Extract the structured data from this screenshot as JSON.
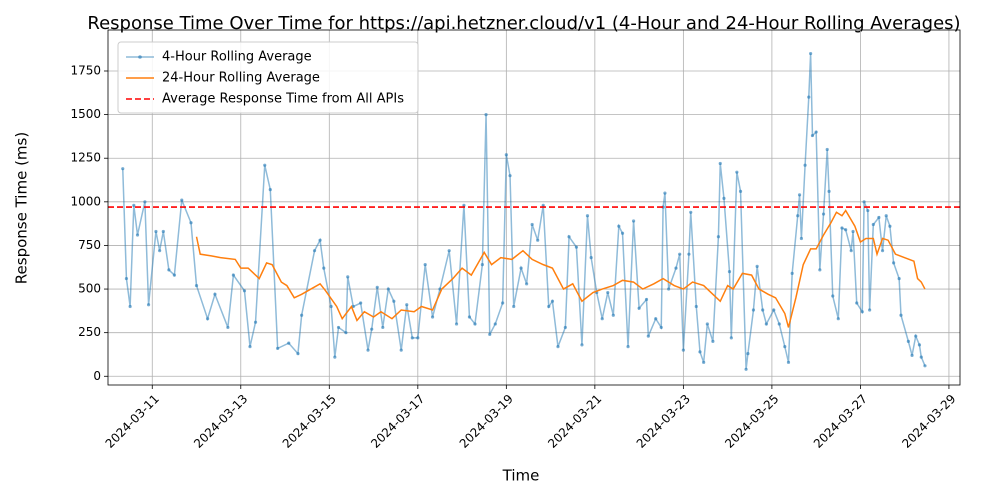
{
  "chart_data": {
    "type": "line",
    "title": "Response Time Over Time for https://api.hetzner.cloud/v1 (4-Hour and 24-Hour Rolling Averages)",
    "xlabel": "Time",
    "ylabel": "Response Time (ms)",
    "xlim": [
      "2024-03-10T00:00",
      "2024-03-29T06:00"
    ],
    "xticks": [
      "2024-03-11",
      "2024-03-13",
      "2024-03-15",
      "2024-03-17",
      "2024-03-19",
      "2024-03-21",
      "2024-03-23",
      "2024-03-25",
      "2024-03-27",
      "2024-03-29"
    ],
    "ylim": [
      -50,
      1985
    ],
    "yticks": [
      0,
      250,
      500,
      750,
      1000,
      1250,
      1500,
      1750
    ],
    "grid": true,
    "legend": "upper left",
    "series": [
      {
        "name": "4-Hour Rolling Average",
        "color": "#1f77b4",
        "markers": true,
        "x": [
          "2024-03-10T08:00",
          "2024-03-10T10:00",
          "2024-03-10T12:00",
          "2024-03-10T14:00",
          "2024-03-10T16:00",
          "2024-03-10T20:00",
          "2024-03-10T22:00",
          "2024-03-11T02:00",
          "2024-03-11T04:00",
          "2024-03-11T06:00",
          "2024-03-11T09:00",
          "2024-03-11T12:00",
          "2024-03-11T16:00",
          "2024-03-11T21:00",
          "2024-03-12T00:00",
          "2024-03-12T06:00",
          "2024-03-12T10:00",
          "2024-03-12T17:00",
          "2024-03-12T20:00",
          "2024-03-13T02:00",
          "2024-03-13T05:00",
          "2024-03-13T08:00",
          "2024-03-13T13:00",
          "2024-03-13T16:00",
          "2024-03-13T20:00",
          "2024-03-14T02:00",
          "2024-03-14T07:00",
          "2024-03-14T09:00",
          "2024-03-14T16:00",
          "2024-03-14T19:00",
          "2024-03-14T21:00",
          "2024-03-15T01:00",
          "2024-03-15T03:00",
          "2024-03-15T05:00",
          "2024-03-15T09:00",
          "2024-03-15T10:00",
          "2024-03-15T13:00",
          "2024-03-15T17:00",
          "2024-03-15T21:00",
          "2024-03-15T23:00",
          "2024-03-16T02:00",
          "2024-03-16T05:00",
          "2024-03-16T08:00",
          "2024-03-16T11:00",
          "2024-03-16T15:00",
          "2024-03-16T18:00",
          "2024-03-16T21:00",
          "2024-03-17T00:00",
          "2024-03-17T04:00",
          "2024-03-17T08:00",
          "2024-03-17T12:00",
          "2024-03-17T17:00",
          "2024-03-17T21:00",
          "2024-03-18T01:00",
          "2024-03-18T04:00",
          "2024-03-18T07:00",
          "2024-03-18T11:00",
          "2024-03-18T13:00",
          "2024-03-18T15:00",
          "2024-03-18T18:00",
          "2024-03-18T22:00",
          "2024-03-19T00:00",
          "2024-03-19T02:00",
          "2024-03-19T04:00",
          "2024-03-19T08:00",
          "2024-03-19T11:00",
          "2024-03-19T14:00",
          "2024-03-19T17:00",
          "2024-03-19T20:00",
          "2024-03-19T23:00",
          "2024-03-20T01:00",
          "2024-03-20T04:00",
          "2024-03-20T08:00",
          "2024-03-20T10:00",
          "2024-03-20T14:00",
          "2024-03-20T17:00",
          "2024-03-20T20:00",
          "2024-03-20T22:00",
          "2024-03-21T01:00",
          "2024-03-21T04:00",
          "2024-03-21T07:00",
          "2024-03-21T10:00",
          "2024-03-21T13:00",
          "2024-03-21T15:00",
          "2024-03-21T18:00",
          "2024-03-21T21:00",
          "2024-03-22T00:00",
          "2024-03-22T04:00",
          "2024-03-22T05:00",
          "2024-03-22T09:00",
          "2024-03-22T12:00",
          "2024-03-22T13:00",
          "2024-03-22T14:00",
          "2024-03-22T16:00",
          "2024-03-22T20:00",
          "2024-03-22T22:00",
          "2024-03-23T00:00",
          "2024-03-23T03:00",
          "2024-03-23T04:00",
          "2024-03-23T07:00",
          "2024-03-23T09:00",
          "2024-03-23T11:00",
          "2024-03-23T13:00",
          "2024-03-23T16:00",
          "2024-03-23T19:00",
          "2024-03-23T20:00",
          "2024-03-23T22:00",
          "2024-03-24T01:00",
          "2024-03-24T02:00",
          "2024-03-24T05:00",
          "2024-03-24T07:00",
          "2024-03-24T10:00",
          "2024-03-24T11:00",
          "2024-03-24T14:00",
          "2024-03-24T16:00",
          "2024-03-24T19:00",
          "2024-03-24T21:00",
          "2024-03-25T01:00",
          "2024-03-25T04:00",
          "2024-03-25T07:00",
          "2024-03-25T09:00",
          "2024-03-25T11:00",
          "2024-03-25T14:00",
          "2024-03-25T15:00",
          "2024-03-25T16:00",
          "2024-03-25T18:00",
          "2024-03-25T20:00",
          "2024-03-25T21:00",
          "2024-03-25T22:00",
          "2024-03-26T00:00",
          "2024-03-26T02:00",
          "2024-03-26T04:00",
          "2024-03-26T06:00",
          "2024-03-26T07:00",
          "2024-03-26T09:00",
          "2024-03-26T12:00",
          "2024-03-26T14:00",
          "2024-03-26T16:00",
          "2024-03-26T19:00",
          "2024-03-26T20:00",
          "2024-03-26T22:00",
          "2024-03-27T01:00",
          "2024-03-27T02:00",
          "2024-03-27T04:00",
          "2024-03-27T05:00",
          "2024-03-27T07:00",
          "2024-03-27T10:00",
          "2024-03-27T12:00",
          "2024-03-27T14:00",
          "2024-03-27T16:00",
          "2024-03-27T18:00",
          "2024-03-27T21:00",
          "2024-03-27T22:00",
          "2024-03-28T02:00",
          "2024-03-28T04:00",
          "2024-03-28T06:00",
          "2024-03-28T08:00",
          "2024-03-28T09:00",
          "2024-03-28T11:00"
        ],
        "values": [
          1190,
          560,
          400,
          980,
          810,
          1000,
          410,
          830,
          720,
          830,
          610,
          580,
          1010,
          880,
          520,
          330,
          470,
          280,
          580,
          490,
          170,
          310,
          1210,
          1070,
          160,
          190,
          130,
          350,
          720,
          780,
          620,
          400,
          110,
          280,
          250,
          570,
          400,
          420,
          150,
          270,
          510,
          280,
          500,
          430,
          150,
          410,
          220,
          220,
          640,
          340,
          500,
          720,
          300,
          980,
          340,
          300,
          640,
          1500,
          240,
          300,
          420,
          1270,
          1150,
          400,
          620,
          530,
          870,
          780,
          980,
          400,
          430,
          170,
          280,
          800,
          740,
          180,
          920,
          680,
          480,
          330,
          480,
          350,
          860,
          820,
          170,
          890,
          390,
          440,
          230,
          330,
          280,
          970,
          1050,
          500,
          620,
          700,
          150,
          700,
          940,
          400,
          140,
          80,
          300,
          200,
          800,
          1220,
          1020,
          600,
          220,
          1170,
          1060,
          40,
          130,
          380,
          630,
          380,
          300,
          380,
          300,
          170,
          80,
          590,
          920,
          1040,
          790,
          1210,
          1600,
          1850,
          1380,
          1400,
          610,
          930,
          1300,
          1060,
          460,
          330,
          850,
          840,
          720,
          830,
          420,
          370,
          1000,
          950,
          380,
          870,
          910,
          720,
          920,
          860,
          650,
          560,
          350,
          200,
          120,
          230,
          180,
          110,
          60
        ]
      },
      {
        "name": "24-Hour Rolling Average",
        "color": "#ff7f0e",
        "markers": false,
        "x": [
          "2024-03-12T00:00",
          "2024-03-12T02:00",
          "2024-03-12T08:00",
          "2024-03-12T13:00",
          "2024-03-12T21:00",
          "2024-03-13T00:00",
          "2024-03-13T04:00",
          "2024-03-13T10:00",
          "2024-03-13T14:00",
          "2024-03-13T17:00",
          "2024-03-13T22:00",
          "2024-03-14T01:00",
          "2024-03-14T05:00",
          "2024-03-14T09:00",
          "2024-03-14T14:00",
          "2024-03-14T19:00",
          "2024-03-14T22:00",
          "2024-03-15T04:00",
          "2024-03-15T07:00",
          "2024-03-15T12:00",
          "2024-03-15T15:00",
          "2024-03-15T19:00",
          "2024-03-16T00:00",
          "2024-03-16T04:00",
          "2024-03-16T10:00",
          "2024-03-16T15:00",
          "2024-03-16T22:00",
          "2024-03-17T02:00",
          "2024-03-17T08:00",
          "2024-03-17T13:00",
          "2024-03-17T19:00",
          "2024-03-18T00:00",
          "2024-03-18T05:00",
          "2024-03-18T12:00",
          "2024-03-18T16:00",
          "2024-03-18T21:00",
          "2024-03-19T03:00",
          "2024-03-19T09:00",
          "2024-03-19T14:00",
          "2024-03-19T20:00",
          "2024-03-20T01:00",
          "2024-03-20T07:00",
          "2024-03-20T12:00",
          "2024-03-20T17:00",
          "2024-03-20T23:00",
          "2024-03-21T04:00",
          "2024-03-21T10:00",
          "2024-03-21T15:00",
          "2024-03-21T21:00",
          "2024-03-22T02:00",
          "2024-03-22T08:00",
          "2024-03-22T13:00",
          "2024-03-22T19:00",
          "2024-03-23T00:00",
          "2024-03-23T05:00",
          "2024-03-23T11:00",
          "2024-03-23T16:00",
          "2024-03-23T20:00",
          "2024-03-24T00:00",
          "2024-03-24T03:00",
          "2024-03-24T08:00",
          "2024-03-24T13:00",
          "2024-03-24T17:00",
          "2024-03-24T22:00",
          "2024-03-25T02:00",
          "2024-03-25T07:00",
          "2024-03-25T09:00",
          "2024-03-25T13:00",
          "2024-03-25T17:00",
          "2024-03-25T21:00",
          "2024-03-26T00:00",
          "2024-03-26T04:00",
          "2024-03-26T08:00",
          "2024-03-26T11:00",
          "2024-03-26T14:00",
          "2024-03-26T16:00",
          "2024-03-26T21:00",
          "2024-03-27T00:00",
          "2024-03-27T03:00",
          "2024-03-27T07:00",
          "2024-03-27T09:00",
          "2024-03-27T12:00",
          "2024-03-27T15:00",
          "2024-03-27T19:00",
          "2024-03-28T00:00",
          "2024-03-28T05:00",
          "2024-03-28T07:00",
          "2024-03-28T09:00",
          "2024-03-28T11:00"
        ],
        "values": [
          800,
          700,
          690,
          680,
          670,
          620,
          620,
          560,
          650,
          640,
          540,
          520,
          450,
          470,
          500,
          530,
          490,
          400,
          330,
          400,
          320,
          370,
          340,
          370,
          330,
          380,
          370,
          400,
          380,
          500,
          560,
          620,
          580,
          710,
          640,
          680,
          670,
          720,
          670,
          640,
          620,
          500,
          530,
          430,
          480,
          500,
          520,
          550,
          540,
          500,
          530,
          560,
          520,
          500,
          540,
          520,
          470,
          430,
          520,
          500,
          590,
          580,
          500,
          470,
          450,
          360,
          280,
          450,
          640,
          730,
          730,
          810,
          880,
          940,
          920,
          950,
          860,
          770,
          790,
          790,
          700,
          790,
          780,
          700,
          680,
          660,
          560,
          540,
          500
        ]
      }
    ],
    "reference_line": {
      "name": "Average Response Time from All APIs",
      "value": 970,
      "color": "#ff0000"
    }
  }
}
